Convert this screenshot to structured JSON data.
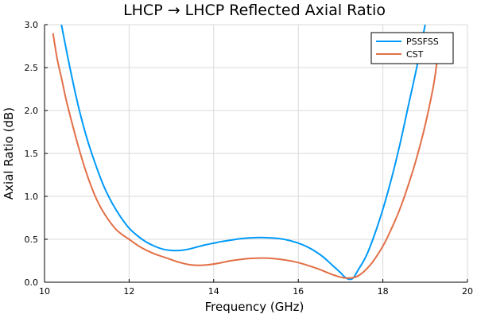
{
  "chart_data": {
    "type": "line",
    "title": "LHCP → LHCP Reflected Axial Ratio",
    "xlabel": "Frequency (GHz)",
    "ylabel": "Axial Ratio (dB)",
    "xlim": [
      10,
      20
    ],
    "ylim": [
      0,
      3
    ],
    "xticks": [
      10,
      12,
      14,
      16,
      18,
      20
    ],
    "xtick_labels": [
      "10",
      "12",
      "14",
      "16",
      "18",
      "20"
    ],
    "yticks": [
      0,
      0.5,
      1,
      1.5,
      2,
      2.5,
      3
    ],
    "ytick_labels": [
      "0.0",
      "0.5",
      "1.0",
      "1.5",
      "2.0",
      "2.5",
      "3.0"
    ],
    "grid": true,
    "legend_position": "top-right",
    "series": [
      {
        "name": "PSSFSS",
        "color": "#009af9",
        "x": [
          10.4,
          10.6,
          10.8,
          11.0,
          11.2,
          11.4,
          11.6,
          11.8,
          12.0,
          12.2,
          12.4,
          12.6,
          12.8,
          13.0,
          13.2,
          13.4,
          13.6,
          13.8,
          14.0,
          14.2,
          14.4,
          14.6,
          14.8,
          15.0,
          15.2,
          15.4,
          15.6,
          15.8,
          16.0,
          16.2,
          16.4,
          16.6,
          16.8,
          17.0,
          17.1,
          17.2,
          17.3,
          17.4,
          17.6,
          17.8,
          18.0,
          18.2,
          18.4,
          18.6,
          18.8,
          19.0
        ],
        "y": [
          3.0,
          2.5,
          2.05,
          1.68,
          1.38,
          1.12,
          0.92,
          0.76,
          0.63,
          0.54,
          0.47,
          0.42,
          0.385,
          0.37,
          0.37,
          0.385,
          0.41,
          0.435,
          0.455,
          0.475,
          0.49,
          0.505,
          0.515,
          0.52,
          0.52,
          0.515,
          0.505,
          0.485,
          0.455,
          0.415,
          0.36,
          0.29,
          0.2,
          0.11,
          0.06,
          0.035,
          0.05,
          0.13,
          0.3,
          0.55,
          0.85,
          1.2,
          1.6,
          2.05,
          2.5,
          3.0
        ]
      },
      {
        "name": "CST",
        "color": "#e26f46",
        "x": [
          10.2,
          10.3,
          10.4,
          10.5,
          10.6,
          10.8,
          11.0,
          11.2,
          11.4,
          11.7,
          12.0,
          12.3,
          12.6,
          12.9,
          13.2,
          13.5,
          13.8,
          14.1,
          14.4,
          14.7,
          15.0,
          15.3,
          15.6,
          15.9,
          16.2,
          16.5,
          16.8,
          17.1,
          17.4,
          17.7,
          18.0,
          18.2,
          18.4,
          18.6,
          18.8,
          19.0,
          19.2,
          19.3
        ],
        "y": [
          2.9,
          2.6,
          2.38,
          2.15,
          1.95,
          1.58,
          1.26,
          1.0,
          0.81,
          0.61,
          0.5,
          0.4,
          0.33,
          0.28,
          0.23,
          0.2,
          0.2,
          0.22,
          0.25,
          0.27,
          0.28,
          0.28,
          0.265,
          0.24,
          0.2,
          0.15,
          0.09,
          0.05,
          0.07,
          0.2,
          0.42,
          0.62,
          0.85,
          1.13,
          1.45,
          1.83,
          2.3,
          2.65
        ]
      }
    ]
  }
}
